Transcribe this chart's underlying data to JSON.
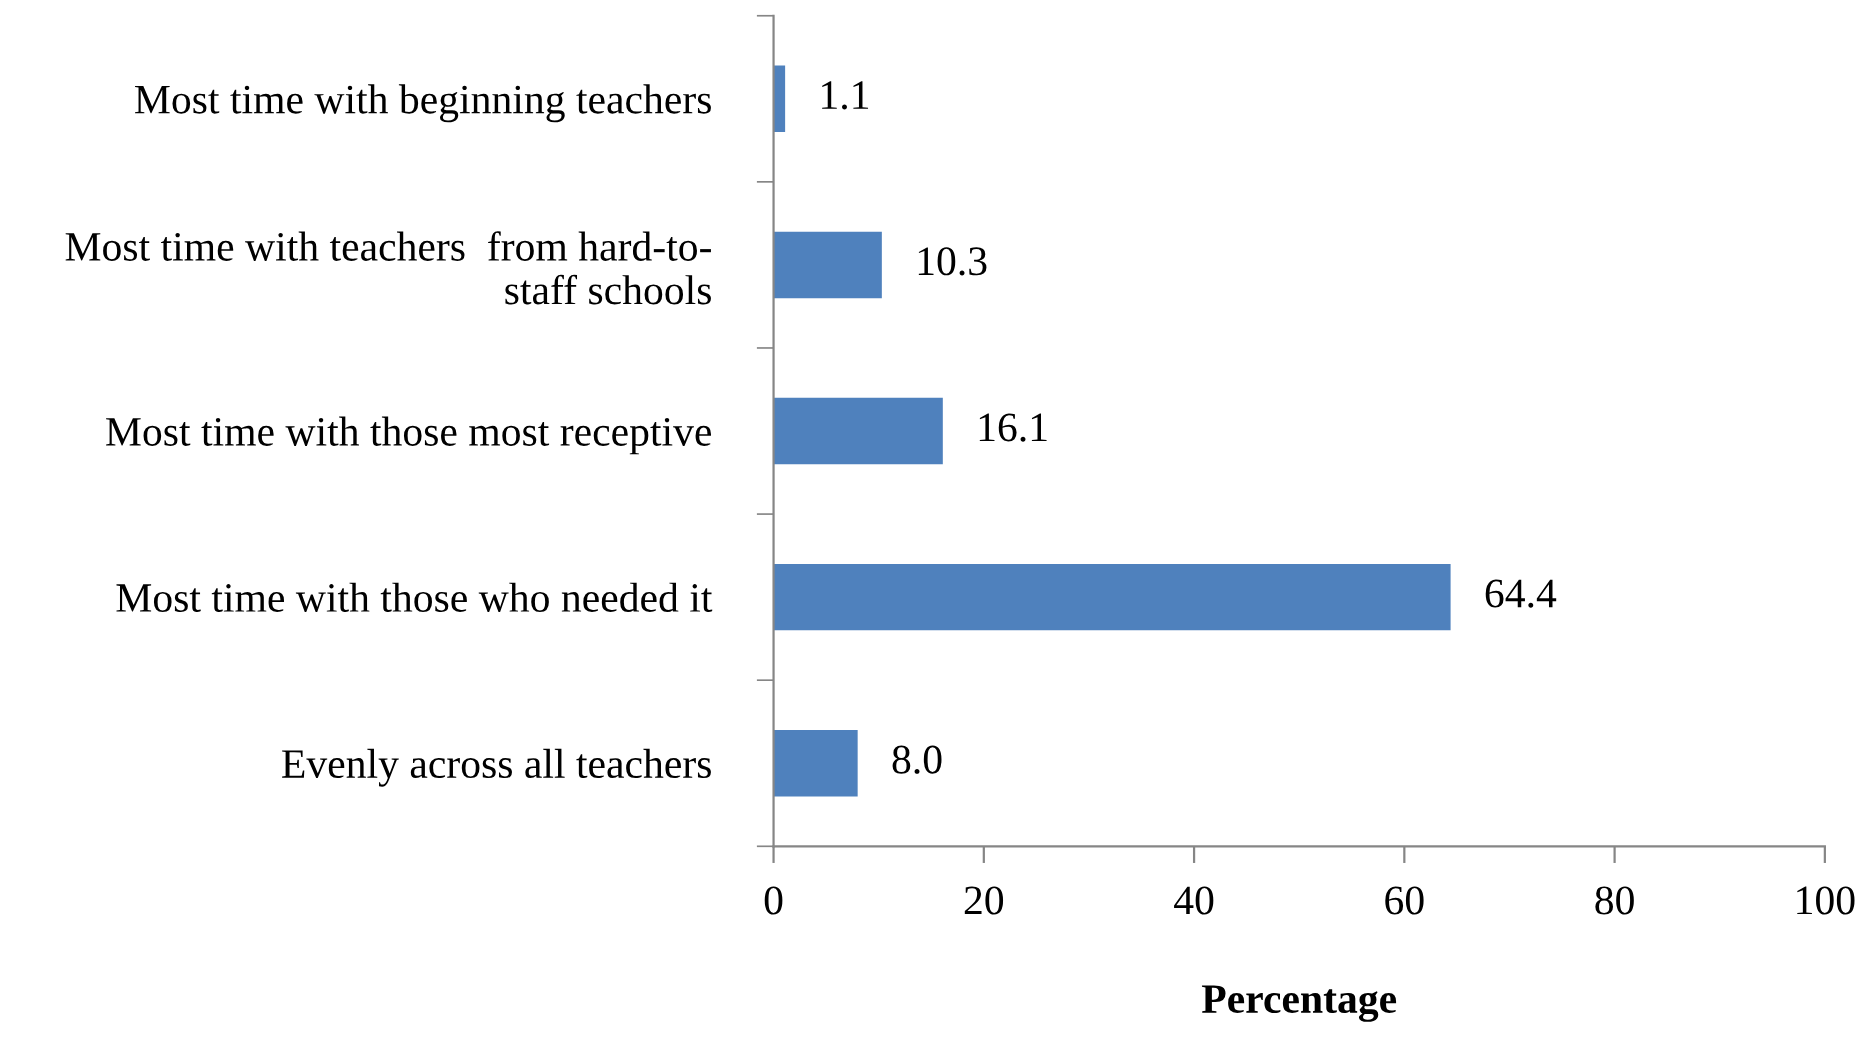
{
  "chart_data": {
    "type": "bar",
    "orientation": "horizontal",
    "xlabel": "Percentage",
    "categories": [
      "Most time with beginning teachers",
      "Most time with teachers  from hard-to-\nstaff schools",
      "Most time with those most receptive",
      "Most time with those who needed it",
      "Evenly across all teachers"
    ],
    "values": [
      1.1,
      10.3,
      16.1,
      64.4,
      8.0
    ],
    "value_labels": [
      "1.1",
      "10.3",
      "16.1",
      "64.4",
      "8.0"
    ],
    "color": "#4f81bd",
    "xlim": [
      0,
      100
    ],
    "xticks": [
      0,
      20,
      40,
      60,
      80,
      100
    ],
    "grid": false,
    "legend": false
  }
}
